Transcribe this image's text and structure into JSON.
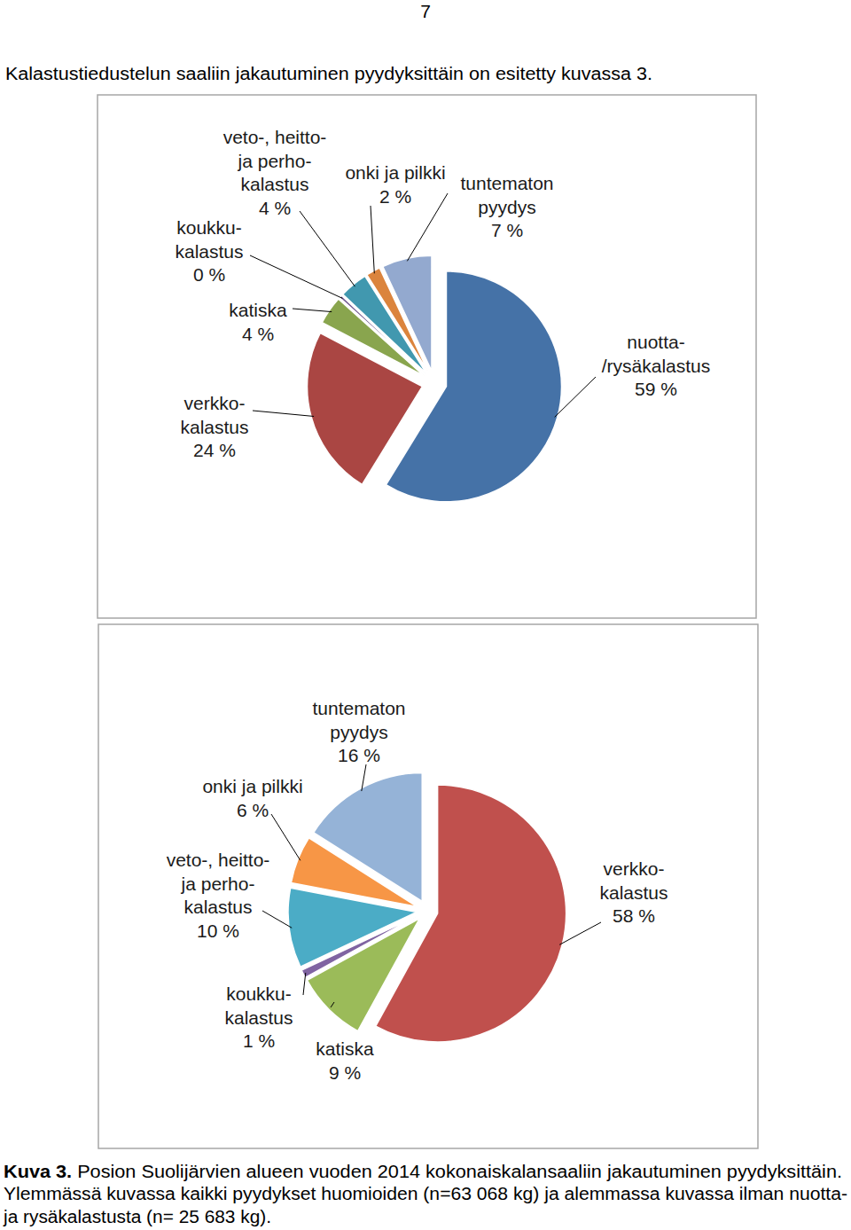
{
  "page_number": "7",
  "intro": "Kalastustiedustelun saaliin jakautuminen pyydyksittäin on esitetty kuvassa 3.",
  "chart_data": [
    {
      "type": "pie",
      "categories": [
        "nuotta-\n/rysäkalastus",
        "verkko-\nkalastus",
        "katiska",
        "koukku-\nkalastus",
        "veto-, heitto-\nja perho-\nkalastus",
        "onki ja pilkki",
        "tuntematon\npyydys"
      ],
      "values": [
        59,
        24,
        4,
        0.4,
        4,
        2,
        7
      ],
      "value_labels": [
        "59 %",
        "24 %",
        "4 %",
        "0 %",
        "4 %",
        "2 %",
        "7 %"
      ],
      "colors": [
        "#4572a7",
        "#aa4643",
        "#89a54e",
        "#71588f",
        "#4198af",
        "#db843d",
        "#93a9cf"
      ],
      "data_labels": true
    },
    {
      "type": "pie",
      "categories": [
        "verkko-\nkalastus",
        "katiska",
        "koukku-\nkalastus",
        "veto-, heitto-\nja perho-\nkalastus",
        "onki ja pilkki",
        "tuntematon\npyydys"
      ],
      "values": [
        58,
        9,
        1,
        10,
        6,
        16
      ],
      "value_labels": [
        "58 %",
        "9 %",
        "1 %",
        "10 %",
        "6 %",
        "16 %"
      ],
      "colors": [
        "#c0504d",
        "#9bbb59",
        "#8064a2",
        "#4bacc6",
        "#f79646",
        "#95b3d7"
      ],
      "data_labels": true
    }
  ],
  "caption": {
    "label": "Kuva 3.",
    "lines": [
      " Posion Suolijärvien alueen vuoden 2014 kokonaiskalansaaliin jakautuminen pyydyksittäin.",
      "Ylemmässä kuvassa kaikki pyydykset huomioiden (n=63 068 kg) ja alemmassa kuvassa ilman nuotta-",
      "ja rysäkalastusta (n= 25 683 kg)."
    ]
  }
}
